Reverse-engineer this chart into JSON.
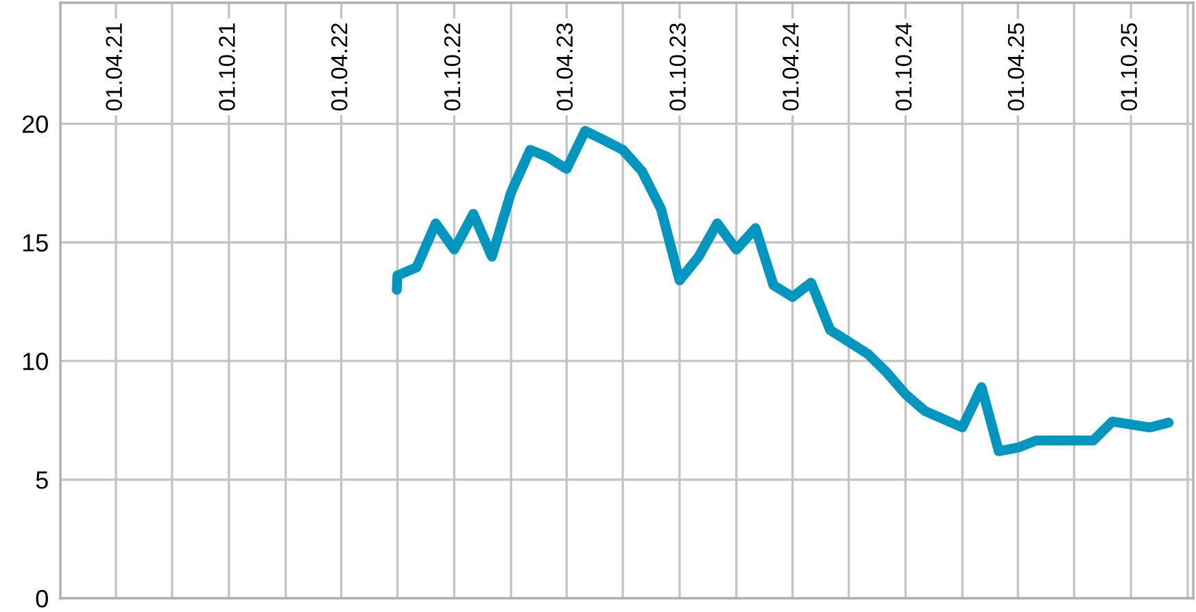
{
  "chart_data": {
    "type": "line",
    "x": [
      "2022-06-30",
      "2022-07-01",
      "2022-08-01",
      "2022-09-01",
      "2022-10-01",
      "2022-11-01",
      "2022-12-01",
      "2023-01-01",
      "2023-02-01",
      "2023-03-01",
      "2023-04-01",
      "2023-05-01",
      "2023-06-01",
      "2023-07-01",
      "2023-08-01",
      "2023-09-01",
      "2023-10-01",
      "2023-11-01",
      "2023-12-01",
      "2024-01-01",
      "2024-02-01",
      "2024-03-01",
      "2024-04-01",
      "2024-05-01",
      "2024-06-01",
      "2024-08-01",
      "2024-09-01",
      "2024-10-01",
      "2024-11-01",
      "2025-01-01",
      "2025-02-01",
      "2025-03-01",
      "2025-04-01",
      "2025-05-01",
      "2025-06-01",
      "2025-08-01",
      "2025-09-01",
      "2025-11-01",
      "2025-12-01"
    ],
    "series": [
      {
        "color": "#0096c0",
        "values": [
          13.0,
          13.6,
          13.95,
          15.8,
          14.7,
          16.2,
          14.4,
          17.1,
          18.9,
          18.6,
          18.1,
          19.7,
          19.3,
          18.9,
          18.0,
          16.4,
          13.4,
          14.4,
          15.8,
          14.7,
          15.6,
          13.2,
          12.7,
          13.3,
          11.3,
          10.3,
          9.5,
          8.6,
          7.9,
          7.2,
          8.9,
          6.2,
          6.35,
          6.65,
          6.65,
          6.65,
          7.45,
          7.2,
          7.4
        ]
      }
    ],
    "xlim": [
      "2021-01-01",
      "2026-01-10"
    ],
    "xticks": [
      {
        "value": "2021-01-01",
        "label": null
      },
      {
        "value": "2021-04-01",
        "label": "01.04.21"
      },
      {
        "value": "2021-07-01",
        "label": null
      },
      {
        "value": "2021-10-01",
        "label": "01.10.21"
      },
      {
        "value": "2022-01-01",
        "label": null
      },
      {
        "value": "2022-04-01",
        "label": "01.04.22"
      },
      {
        "value": "2022-07-01",
        "label": null
      },
      {
        "value": "2022-10-01",
        "label": "01.10.22"
      },
      {
        "value": "2023-01-01",
        "label": null
      },
      {
        "value": "2023-04-01",
        "label": "01.04.23"
      },
      {
        "value": "2023-07-01",
        "label": null
      },
      {
        "value": "2023-10-01",
        "label": "01.10.23"
      },
      {
        "value": "2024-01-01",
        "label": null
      },
      {
        "value": "2024-04-01",
        "label": "01.04.24"
      },
      {
        "value": "2024-07-01",
        "label": null
      },
      {
        "value": "2024-10-01",
        "label": "01.10.24"
      },
      {
        "value": "2025-01-01",
        "label": null
      },
      {
        "value": "2025-04-01",
        "label": "01.04.25"
      },
      {
        "value": "2025-07-01",
        "label": null
      },
      {
        "value": "2025-10-01",
        "label": "01.10.25"
      },
      {
        "value": "2026-01-01",
        "label": null
      }
    ],
    "ylim": [
      0,
      25.1
    ],
    "yticks": [
      0,
      5,
      10,
      15,
      20
    ],
    "grid": true,
    "marker": "none",
    "line_style": "solid"
  }
}
